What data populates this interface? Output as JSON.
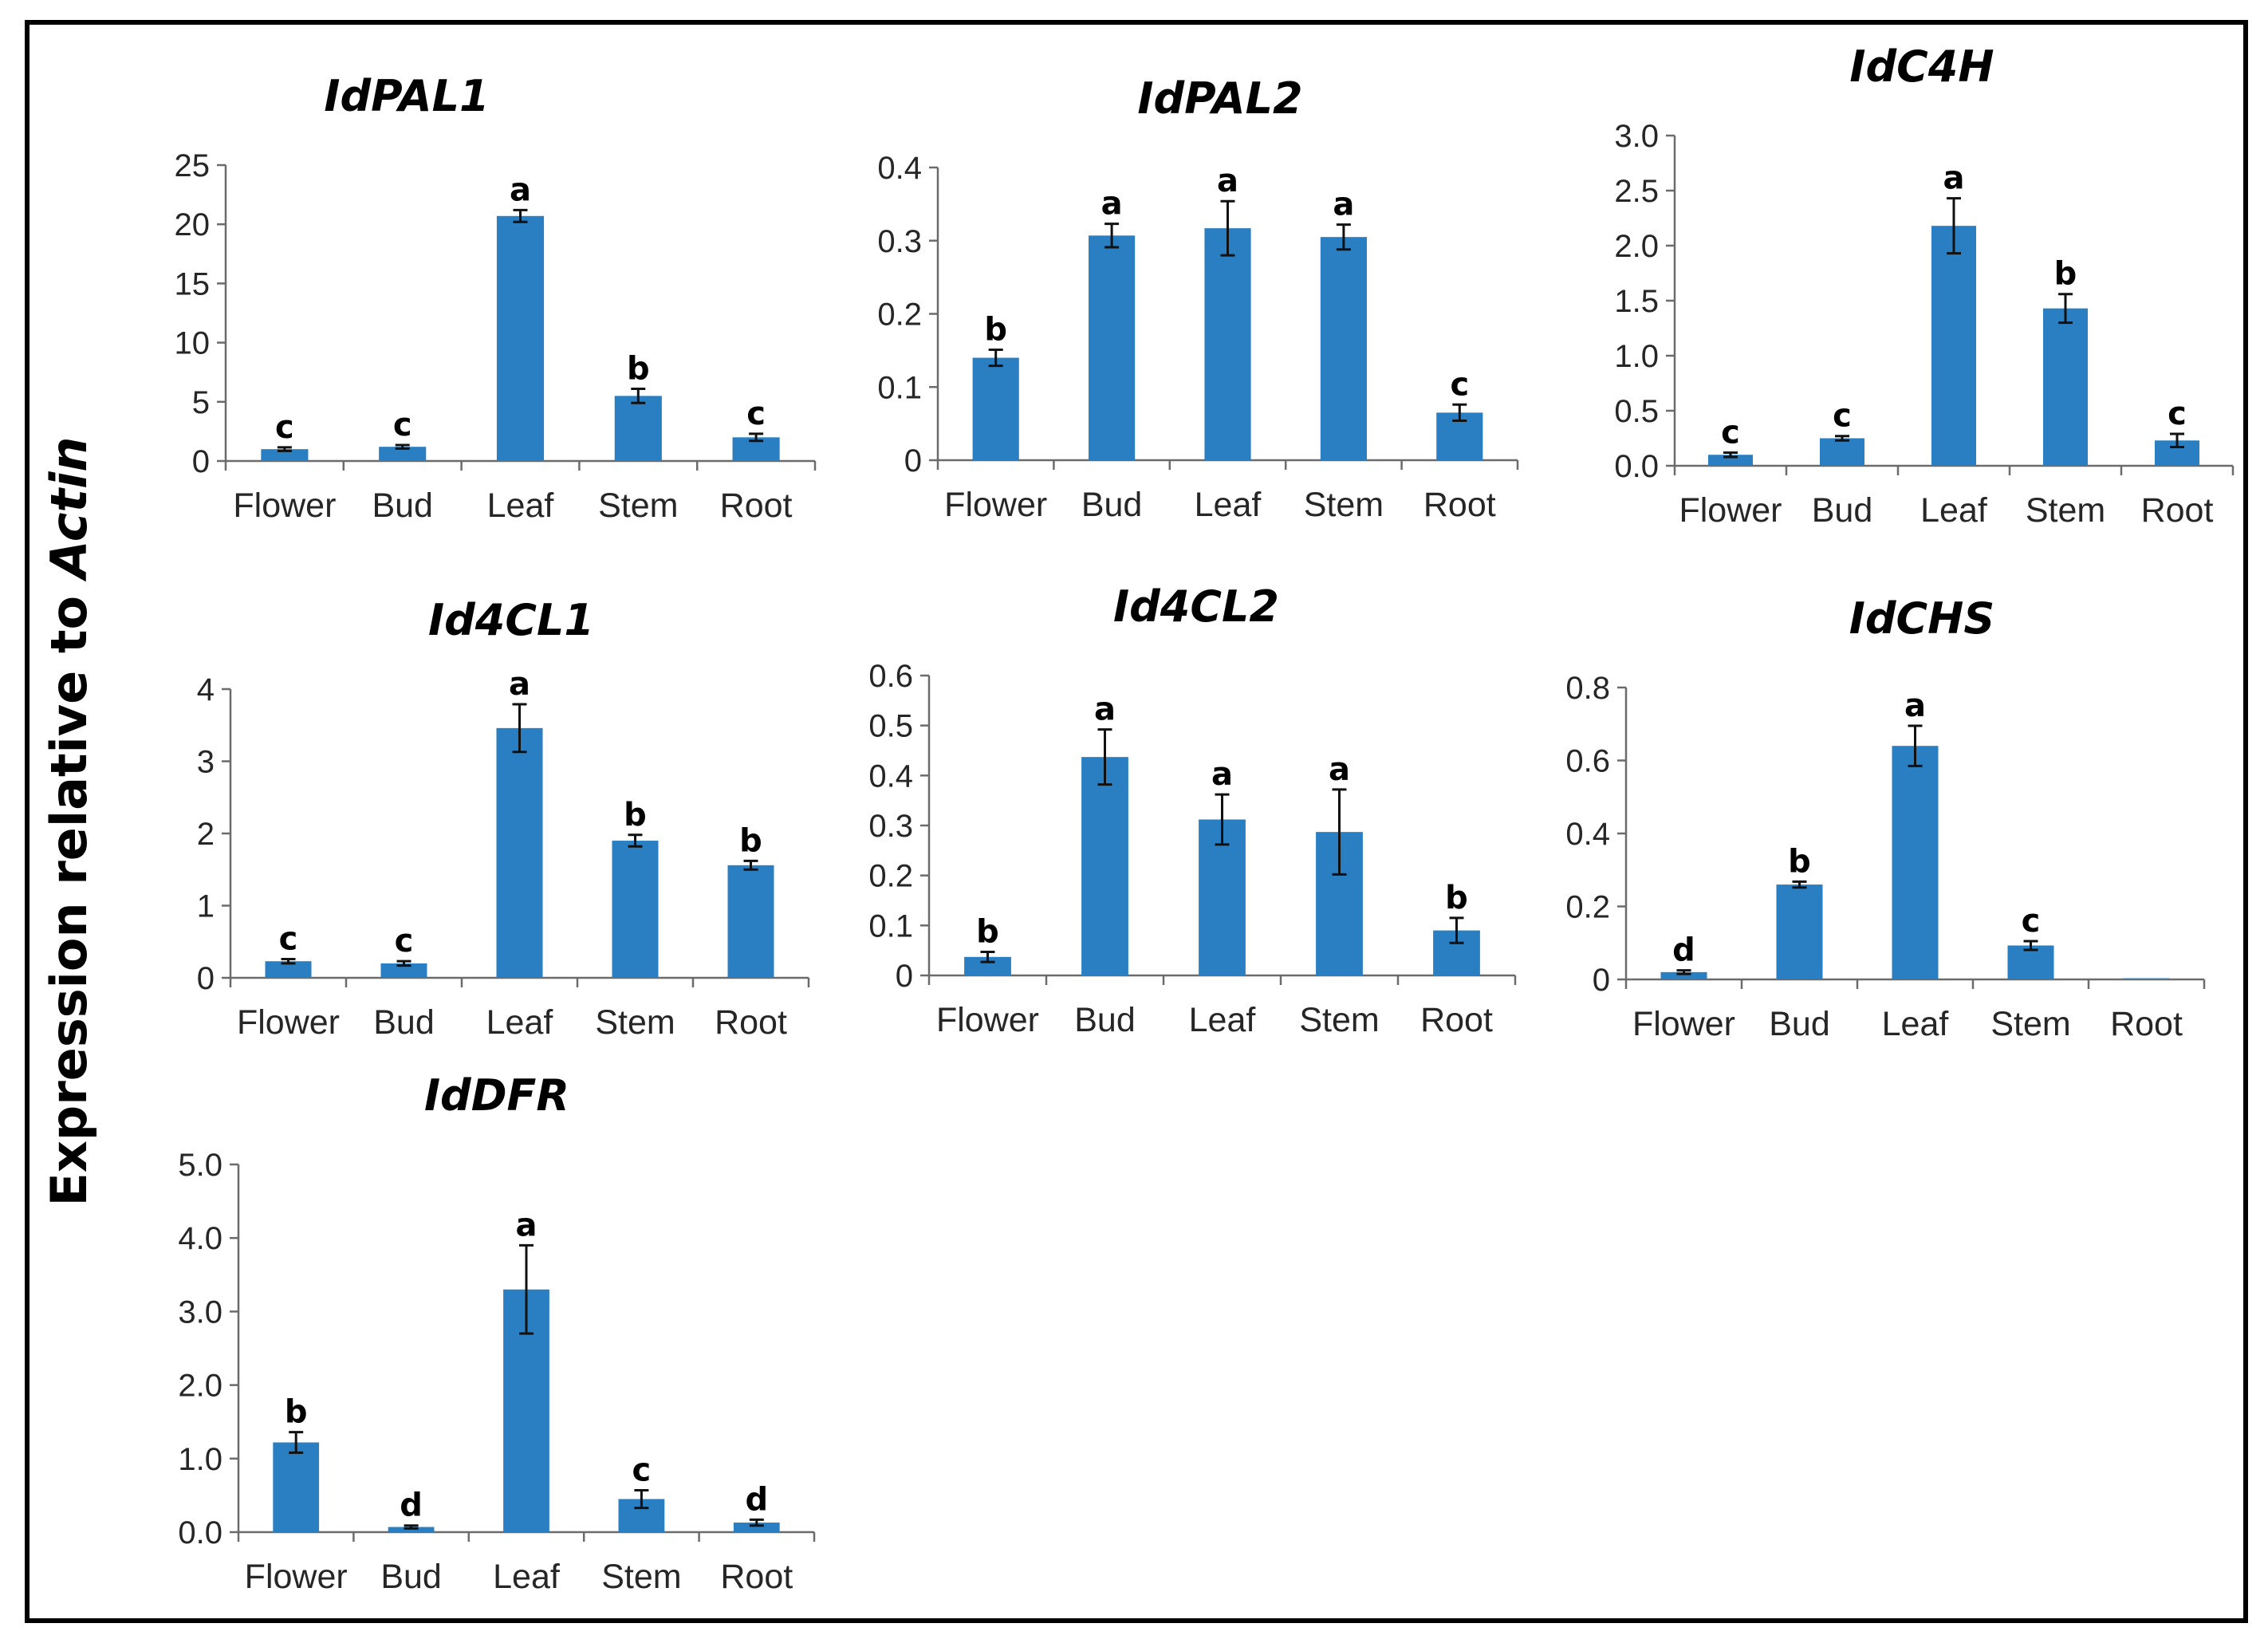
{
  "figure": {
    "ylabel_prefix": "Expression relative to ",
    "ylabel_italic": "Actin",
    "bar_color": "#2a7fc2"
  },
  "chart_data": [
    {
      "type": "bar",
      "title": "IdPAL1",
      "categories": [
        "Flower",
        "Bud",
        "Leaf",
        "Stem",
        "Root"
      ],
      "values": [
        1.0,
        1.2,
        20.7,
        5.5,
        2.0
      ],
      "errors": [
        0.15,
        0.15,
        0.5,
        0.6,
        0.3
      ],
      "labels": [
        "c",
        "c",
        "a",
        "b",
        "c"
      ],
      "ylim": [
        0,
        25
      ],
      "yticks": [
        "0",
        "5",
        "10",
        "15",
        "20",
        "25"
      ],
      "xlabel": "",
      "ylabel": ""
    },
    {
      "type": "bar",
      "title": "IdPAL2",
      "categories": [
        "Flower",
        "Bud",
        "Leaf",
        "Stem",
        "Root"
      ],
      "values": [
        0.14,
        0.307,
        0.317,
        0.305,
        0.065
      ],
      "errors": [
        0.011,
        0.016,
        0.037,
        0.017,
        0.011
      ],
      "labels": [
        "b",
        "a",
        "a",
        "a",
        "c"
      ],
      "ylim": [
        0,
        0.4
      ],
      "yticks": [
        "0",
        "0.1",
        "0.2",
        "0.3",
        "0.4"
      ],
      "xlabel": "",
      "ylabel": ""
    },
    {
      "type": "bar",
      "title": "IdC4H",
      "categories": [
        "Flower",
        "Bud",
        "Leaf",
        "Stem",
        "Root"
      ],
      "values": [
        0.1,
        0.25,
        2.18,
        1.43,
        0.23
      ],
      "errors": [
        0.02,
        0.02,
        0.25,
        0.13,
        0.06
      ],
      "labels": [
        "c",
        "c",
        "a",
        "b",
        "c"
      ],
      "ylim": [
        0,
        3.0
      ],
      "yticks": [
        "0.0",
        "0.5",
        "1.0",
        "1.5",
        "2.0",
        "2.5",
        "3.0"
      ],
      "xlabel": "",
      "ylabel": ""
    },
    {
      "type": "bar",
      "title": "Id4CL1",
      "categories": [
        "Flower",
        "Bud",
        "Leaf",
        "Stem",
        "Root"
      ],
      "values": [
        0.23,
        0.2,
        3.46,
        1.9,
        1.56
      ],
      "errors": [
        0.03,
        0.03,
        0.33,
        0.08,
        0.06
      ],
      "labels": [
        "c",
        "c",
        "a",
        "b",
        "b"
      ],
      "ylim": [
        0,
        4
      ],
      "yticks": [
        "0",
        "1",
        "2",
        "3",
        "4"
      ],
      "xlabel": "",
      "ylabel": ""
    },
    {
      "type": "bar",
      "title": "Id4CL2",
      "categories": [
        "Flower",
        "Bud",
        "Leaf",
        "Stem",
        "Root"
      ],
      "values": [
        0.037,
        0.437,
        0.312,
        0.287,
        0.09
      ],
      "errors": [
        0.01,
        0.055,
        0.05,
        0.085,
        0.025
      ],
      "labels": [
        "b",
        "a",
        "a",
        "a",
        "b"
      ],
      "ylim": [
        0,
        0.6
      ],
      "yticks": [
        "0",
        "0.1",
        "0.2",
        "0.3",
        "0.4",
        "0.5",
        "0.6"
      ],
      "xlabel": "",
      "ylabel": ""
    },
    {
      "type": "bar",
      "title": "IdCHS",
      "categories": [
        "Flower",
        "Bud",
        "Leaf",
        "Stem",
        "Root"
      ],
      "values": [
        0.02,
        0.26,
        0.64,
        0.093,
        0.003
      ],
      "errors": [
        0.005,
        0.008,
        0.055,
        0.012,
        0.0
      ],
      "labels": [
        "d",
        "b",
        "a",
        "c",
        ""
      ],
      "ylim": [
        0,
        0.8
      ],
      "yticks": [
        "0",
        "0.2",
        "0.4",
        "0.6",
        "0.8"
      ],
      "xlabel": "",
      "ylabel": ""
    },
    {
      "type": "bar",
      "title": "IdDFR",
      "categories": [
        "Flower",
        "Bud",
        "Leaf",
        "Stem",
        "Root"
      ],
      "values": [
        1.22,
        0.07,
        3.3,
        0.45,
        0.13
      ],
      "errors": [
        0.14,
        0.02,
        0.6,
        0.12,
        0.04
      ],
      "labels": [
        "b",
        "d",
        "a",
        "c",
        "d"
      ],
      "ylim": [
        0,
        5.0
      ],
      "yticks": [
        "0.0",
        "1.0",
        "2.0",
        "3.0",
        "4.0",
        "5.0"
      ],
      "xlabel": "",
      "ylabel": ""
    }
  ]
}
